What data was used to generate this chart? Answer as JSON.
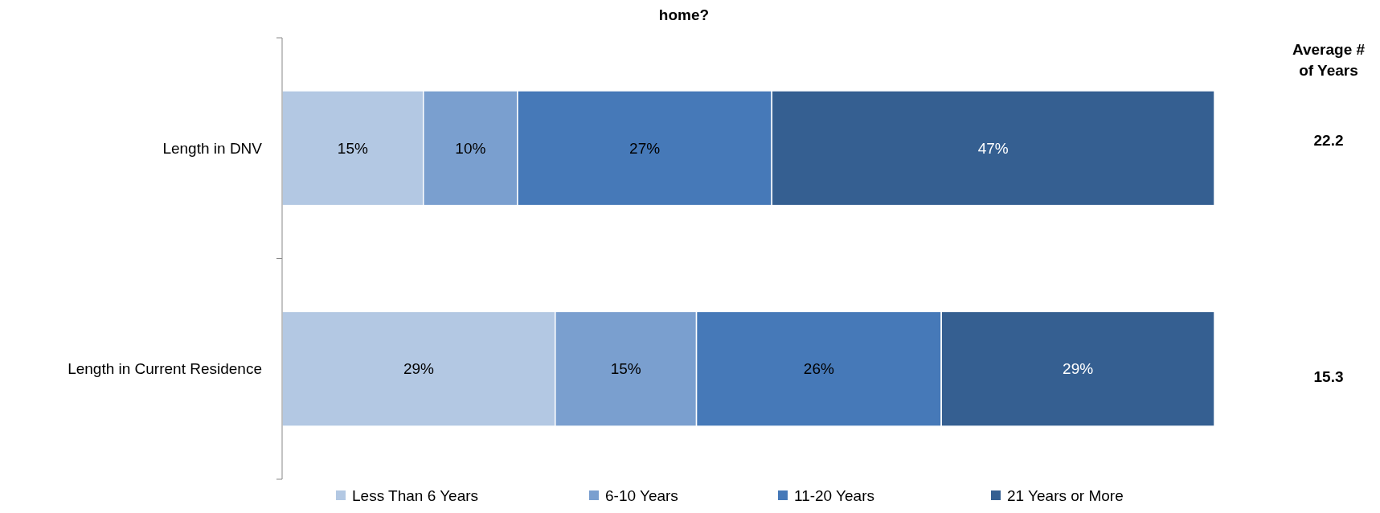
{
  "chart_data": {
    "type": "bar",
    "orientation": "horizontal",
    "stacked": true,
    "title": "home?",
    "categories": [
      "Length in DNV",
      "Length in Current Residence"
    ],
    "series": [
      {
        "name": "Less Than 6 Years",
        "color": "#b3c8e3",
        "values": [
          15,
          29
        ],
        "value_labels": [
          "15%",
          "29%"
        ]
      },
      {
        "name": "6-10 Years",
        "color": "#7a9fcf",
        "values": [
          10,
          15
        ],
        "value_labels": [
          "10%",
          "15%"
        ]
      },
      {
        "name": "11-20 Years",
        "color": "#4679b8",
        "values": [
          27,
          26
        ],
        "value_labels": [
          "27%",
          "26%"
        ]
      },
      {
        "name": "21 Years or More",
        "color": "#355f91",
        "values": [
          47,
          29
        ],
        "value_labels": [
          "47%",
          "29%"
        ]
      }
    ],
    "tick_labels": "y",
    "legend": "bottom",
    "annotations": [
      "Average # of Years",
      "22.2",
      "15.3"
    ]
  }
}
